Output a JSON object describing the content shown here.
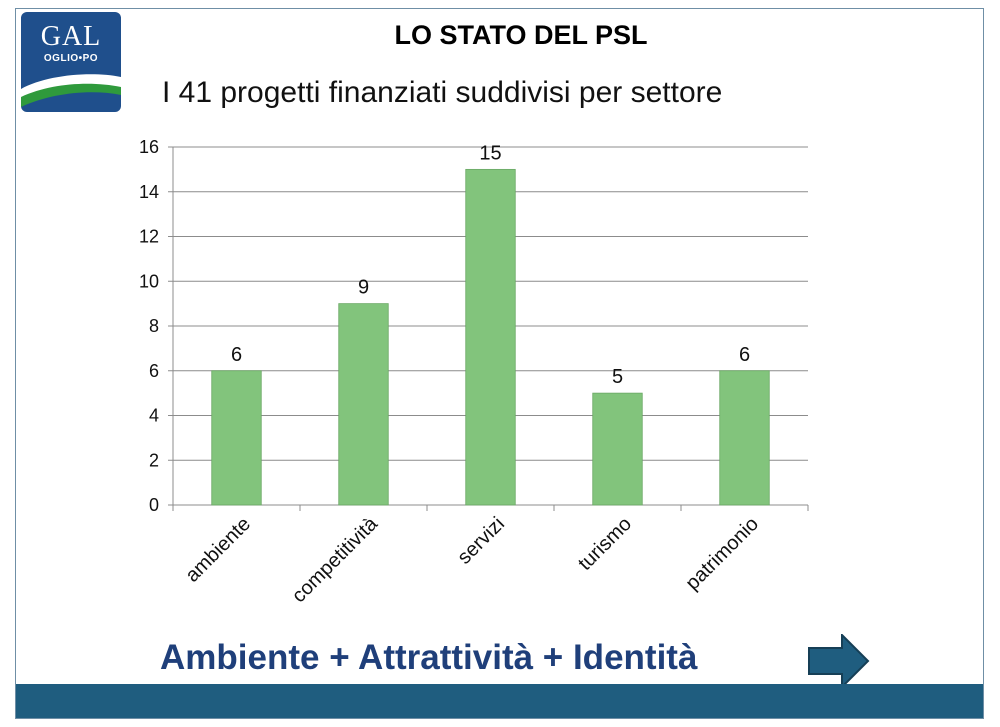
{
  "logo": {
    "main": "GAL",
    "sub": "OGLIO•PO"
  },
  "header": {
    "title": "LO STATO DEL PSL",
    "subtitle": "I 41 progetti finanziati suddivisi per settore"
  },
  "tagline": "Ambiente + Attrattività + Identità",
  "colors": {
    "bar": "#82c47c",
    "bar_stroke": "#6aa864",
    "tagline": "#1f3f7a",
    "footer": "#1f5d7f",
    "arrow": "#1f5d7f"
  },
  "icons": {
    "next": "arrow-right-icon"
  },
  "chart_data": {
    "type": "bar",
    "categories": [
      "ambiente",
      "competitività",
      "servizi",
      "turismo",
      "patrimonio"
    ],
    "values": [
      6,
      9,
      15,
      5,
      6
    ],
    "data_labels": [
      "6",
      "9",
      "15",
      "5",
      "6"
    ],
    "ylim": [
      0,
      16
    ],
    "yticks": [
      0,
      2,
      4,
      6,
      8,
      10,
      12,
      14,
      16
    ],
    "grid": true,
    "legend": "none"
  }
}
